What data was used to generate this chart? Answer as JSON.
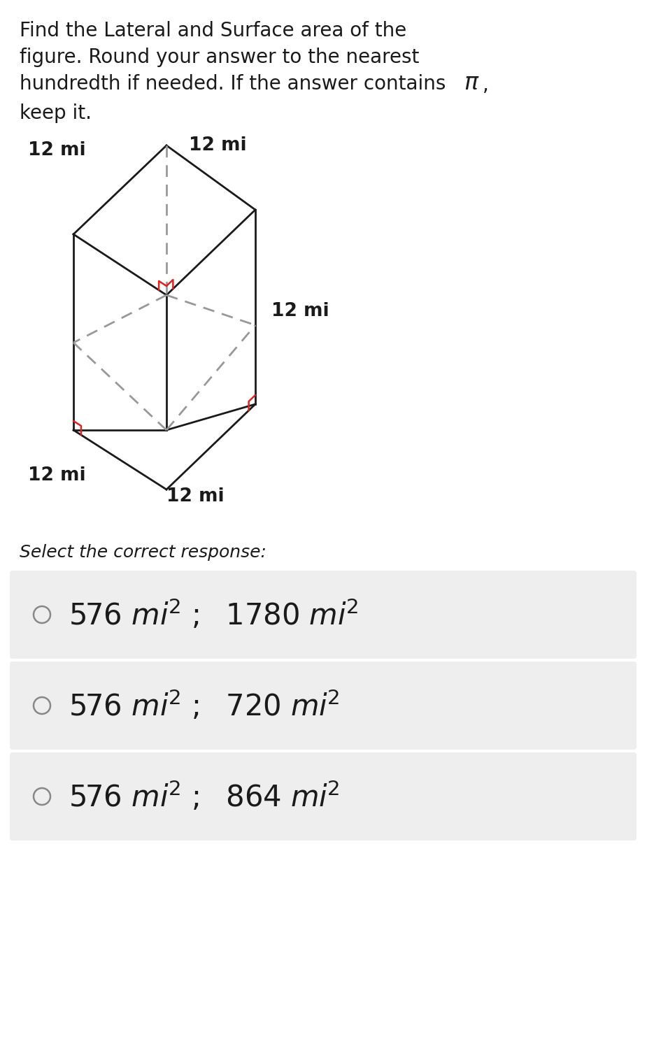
{
  "pi_symbol": "π",
  "dim_label": "12 mi",
  "select_text": "Select the correct response:",
  "option_left": [
    "576",
    "576",
    "576"
  ],
  "option_right": [
    "1780",
    "720",
    "864"
  ],
  "bg_color": "#ffffff",
  "option_bg": "#eeeeee",
  "text_color": "#1a1a1a",
  "line_color": "#1a1a1a",
  "dashed_color": "#999999",
  "red_color": "#dd2222",
  "fig_width": 9.25,
  "fig_height": 15.03
}
